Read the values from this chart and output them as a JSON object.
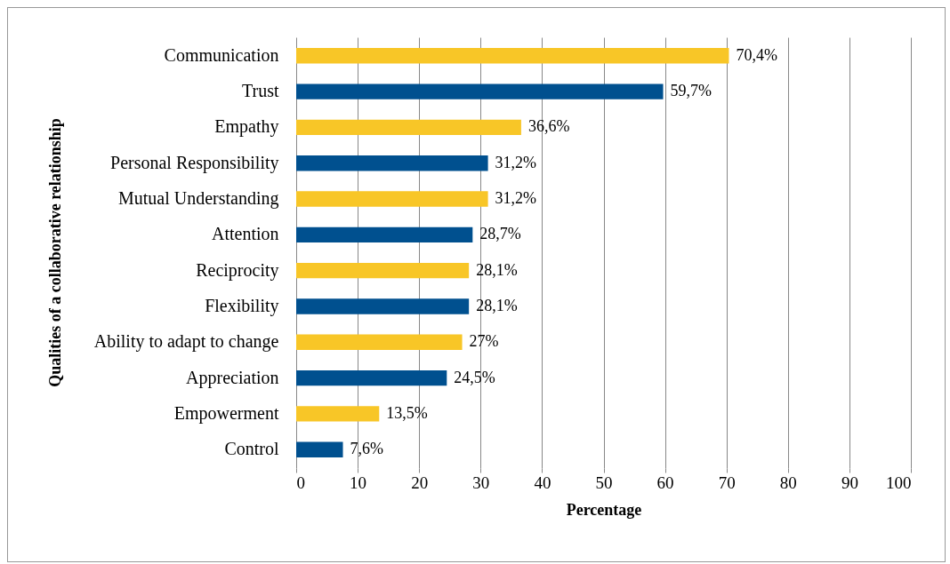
{
  "chart_data": {
    "type": "bar",
    "orientation": "horizontal",
    "xlabel": "Percentage",
    "ylabel": "Qualities of a collaborative relationship",
    "categories": [
      "Communication",
      "Trust",
      "Empathy",
      "Personal Responsibility",
      "Mutual Understanding",
      "Attention",
      "Reciprocity",
      "Flexibility",
      "Ability to adapt to change",
      "Appreciation",
      "Empowerment",
      "Control"
    ],
    "values": [
      70.4,
      59.7,
      36.6,
      31.2,
      31.2,
      28.7,
      28.1,
      28.1,
      27,
      24.5,
      13.5,
      7.6
    ],
    "value_labels": [
      "70,4%",
      "59,7%",
      "36,6%",
      "31,2%",
      "31,2%",
      "28,7%",
      "28,1%",
      "28,1%",
      "27%",
      "24,5%",
      "13,5%",
      "7,6%"
    ],
    "colors": [
      "#f8c627",
      "#00508f",
      "#f8c627",
      "#00508f",
      "#f8c627",
      "#00508f",
      "#f8c627",
      "#00508f",
      "#f8c627",
      "#00508f",
      "#f8c627",
      "#00508f"
    ],
    "xlim": [
      0,
      100
    ],
    "xticks": [
      0,
      10,
      20,
      30,
      40,
      50,
      60,
      70,
      80,
      90,
      100
    ],
    "grid": "x"
  }
}
